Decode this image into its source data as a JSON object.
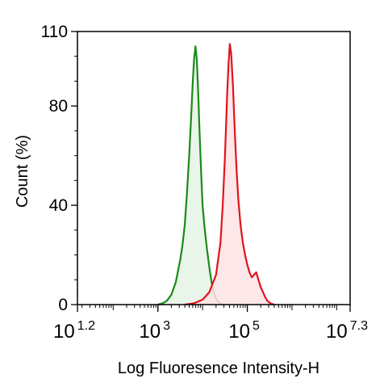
{
  "chart_data": {
    "type": "area",
    "title": "",
    "xlabel": "Log Fluoresence Intensity-H",
    "ylabel": "Count  (%)",
    "x_scale": "log10",
    "xlim": [
      1.2,
      7.3
    ],
    "ylim": [
      0,
      110
    ],
    "grid": false,
    "legend": "none",
    "y_ticks": [
      {
        "value": 0,
        "label": "0"
      },
      {
        "value": 40,
        "label": "40"
      },
      {
        "value": 80,
        "label": "80"
      },
      {
        "value": 110,
        "label": "110"
      }
    ],
    "x_ticks": [
      {
        "value": 1.2,
        "base": "10",
        "exp": "1.2"
      },
      {
        "value": 3,
        "base": "10",
        "exp": "3"
      },
      {
        "value": 5,
        "base": "10",
        "exp": "5"
      },
      {
        "value": 7.3,
        "base": "10",
        "exp": "7.3"
      }
    ],
    "series": [
      {
        "color": "#1b8a1b",
        "fill": "#e6f3e6",
        "points": [
          [
            3.0,
            0
          ],
          [
            3.1,
            0.5
          ],
          [
            3.2,
            1.5
          ],
          [
            3.3,
            4
          ],
          [
            3.4,
            9
          ],
          [
            3.5,
            18
          ],
          [
            3.55,
            24
          ],
          [
            3.6,
            32
          ],
          [
            3.65,
            45
          ],
          [
            3.7,
            60
          ],
          [
            3.75,
            78
          ],
          [
            3.78,
            90
          ],
          [
            3.81,
            99
          ],
          [
            3.84,
            104
          ],
          [
            3.87,
            99
          ],
          [
            3.9,
            86
          ],
          [
            3.93,
            70
          ],
          [
            3.97,
            52
          ],
          [
            4.0,
            40
          ],
          [
            4.05,
            30
          ],
          [
            4.1,
            22
          ],
          [
            4.15,
            15
          ],
          [
            4.2,
            9
          ],
          [
            4.25,
            5
          ],
          [
            4.3,
            2.5
          ],
          [
            4.35,
            1
          ],
          [
            4.45,
            0
          ]
        ]
      },
      {
        "color": "#e0141e",
        "fill": "#fde3e4",
        "points": [
          [
            3.6,
            0
          ],
          [
            3.8,
            0.5
          ],
          [
            4.0,
            2
          ],
          [
            4.15,
            5
          ],
          [
            4.3,
            12
          ],
          [
            4.4,
            25
          ],
          [
            4.45,
            40
          ],
          [
            4.5,
            60
          ],
          [
            4.55,
            85
          ],
          [
            4.58,
            97
          ],
          [
            4.61,
            105
          ],
          [
            4.64,
            101
          ],
          [
            4.68,
            88
          ],
          [
            4.72,
            70
          ],
          [
            4.76,
            54
          ],
          [
            4.8,
            42
          ],
          [
            4.85,
            32
          ],
          [
            4.9,
            25
          ],
          [
            4.95,
            20
          ],
          [
            5.0,
            16
          ],
          [
            5.05,
            13
          ],
          [
            5.1,
            11
          ],
          [
            5.15,
            12
          ],
          [
            5.2,
            13
          ],
          [
            5.25,
            10
          ],
          [
            5.3,
            7
          ],
          [
            5.35,
            5
          ],
          [
            5.4,
            3
          ],
          [
            5.45,
            1.5
          ],
          [
            5.52,
            0.5
          ],
          [
            5.6,
            0
          ]
        ]
      }
    ]
  }
}
